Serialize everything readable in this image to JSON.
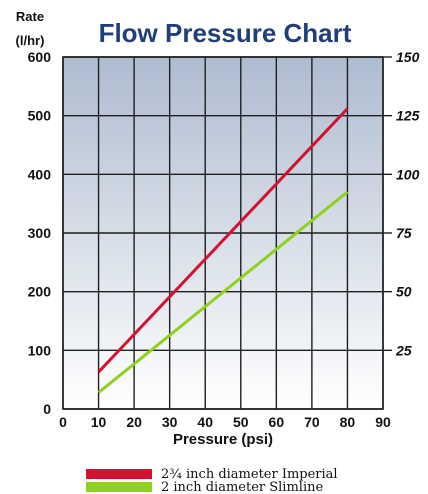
{
  "chart_data": {
    "type": "line",
    "title": "Flow Pressure Chart",
    "ylabel_line1": "Rate",
    "ylabel_line2": "(l/hr)",
    "xlabel": "Pressure (psi)",
    "xlim": [
      0,
      90
    ],
    "ylim": [
      0,
      600
    ],
    "y2lim": [
      0,
      150
    ],
    "x_ticks": [
      "0",
      "10",
      "20",
      "30",
      "40",
      "50",
      "60",
      "70",
      "80",
      "90"
    ],
    "y_ticks": [
      "0",
      "100",
      "200",
      "300",
      "400",
      "500",
      "600"
    ],
    "y2_ticks": [
      "25",
      "50",
      "75",
      "100",
      "125",
      "150"
    ],
    "grid": true,
    "legend_position": "bottom",
    "series": [
      {
        "name": "2¾ inch diameter Imperial",
        "color": "#d51130",
        "x": [
          10,
          80
        ],
        "y": [
          63,
          512
        ]
      },
      {
        "name": "2 inch diameter Slimline",
        "color": "#8fd11f",
        "x": [
          10,
          80
        ],
        "y": [
          28,
          370
        ]
      }
    ]
  }
}
